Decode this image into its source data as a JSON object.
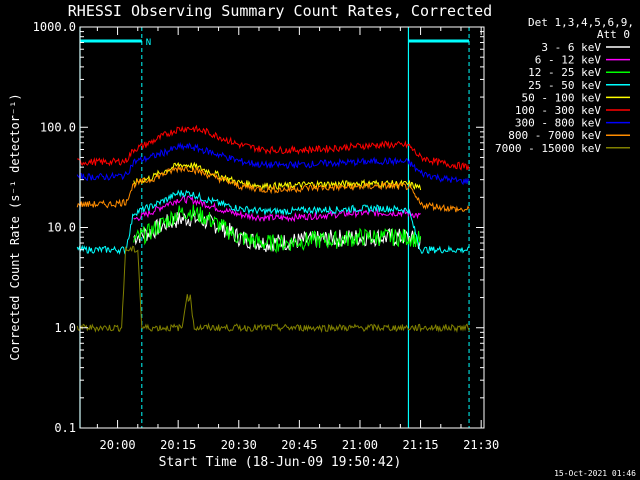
{
  "chart_data": {
    "type": "line",
    "title": "RHESSI Observing Summary Count Rates, Corrected",
    "xlabel": "Start Time (18-Jun-09 19:50:42)",
    "ylabel": "Corrected Count Rate (s⁻¹ detector⁻¹)",
    "y_scale": "log",
    "ylim": [
      0.1,
      1000
    ],
    "xlim": [
      "19:50:42",
      "21:30:42"
    ],
    "y_ticks": [
      "1000.0",
      "100.0",
      "10.0",
      "1.0",
      "0.1"
    ],
    "x_ticks": [
      "20:00",
      "20:15",
      "20:30",
      "20:45",
      "21:00",
      "21:15",
      "21:30"
    ],
    "legend_header": [
      "Det 1,3,4,5,6,9,",
      "Att 0"
    ],
    "legend_position": "top-right",
    "timestamp": "15-Oct-2021 01:46",
    "night_marker": "N",
    "night_intervals": [
      [
        "19:50:42",
        "20:06:00"
      ],
      [
        "21:12:00",
        "21:27:00"
      ]
    ],
    "series": [
      {
        "name": "3 - 6 keV",
        "color": "#ffffff",
        "x": [
          "20:04",
          "20:08",
          "20:12",
          "20:15",
          "20:18",
          "20:22",
          "20:26",
          "20:30",
          "20:36",
          "20:42",
          "20:48",
          "20:54",
          "21:00",
          "21:06",
          "21:12",
          "21:15"
        ],
        "values": [
          8,
          9,
          11,
          12,
          12.5,
          11.5,
          10,
          8,
          7,
          7.2,
          7.5,
          7.8,
          8,
          8,
          8,
          7
        ]
      },
      {
        "name": "6 - 12 keV",
        "color": "#ff00ff",
        "x": [
          "20:04",
          "20:08",
          "20:12",
          "20:15",
          "20:18",
          "20:22",
          "20:26",
          "20:30",
          "20:36",
          "20:42",
          "20:48",
          "20:54",
          "21:00",
          "21:06",
          "21:12",
          "21:15"
        ],
        "values": [
          12,
          14,
          17,
          19,
          19,
          17,
          15,
          13.5,
          12.5,
          12.5,
          13,
          13.5,
          14,
          14,
          14,
          13
        ]
      },
      {
        "name": "12 - 25 keV",
        "color": "#00ff00",
        "x": [
          "20:04",
          "20:08",
          "20:12",
          "20:15",
          "20:18",
          "20:22",
          "20:26",
          "20:30",
          "20:36",
          "20:42",
          "20:48",
          "20:54",
          "21:00",
          "21:06",
          "21:12",
          "21:15"
        ],
        "values": [
          7.5,
          9,
          11.5,
          14,
          14.5,
          12.5,
          10,
          8,
          7,
          7,
          7.5,
          7.5,
          8,
          8,
          8,
          7.5
        ]
      },
      {
        "name": "25 - 50 keV",
        "color": "#00ffff",
        "x": [
          "19:50",
          "19:54",
          "19:58",
          "20:02",
          "20:04",
          "20:08",
          "20:12",
          "20:15",
          "20:18",
          "20:22",
          "20:26",
          "20:30",
          "20:36",
          "20:42",
          "20:48",
          "20:54",
          "21:00",
          "21:06",
          "21:12",
          "21:15",
          "21:20",
          "21:25",
          "21:27"
        ],
        "values": [
          6,
          6,
          6,
          6,
          14,
          16,
          19,
          22,
          22,
          19,
          17,
          15.5,
          14.5,
          14.5,
          15,
          15,
          15.5,
          15.5,
          15,
          6,
          6,
          6,
          6
        ]
      },
      {
        "name": "50 - 100 keV",
        "color": "#ffff00",
        "x": [
          "20:04",
          "20:08",
          "20:12",
          "20:15",
          "20:18",
          "20:22",
          "20:26",
          "20:30",
          "20:36",
          "20:42",
          "20:48",
          "20:54",
          "21:00",
          "21:06",
          "21:12",
          "21:15"
        ],
        "values": [
          28,
          31,
          37,
          42,
          42,
          37,
          32,
          28,
          26,
          26,
          27,
          27,
          27.5,
          27.5,
          27,
          25
        ]
      },
      {
        "name": "100 - 300 keV",
        "color": "#ff0000",
        "x": [
          "19:50",
          "19:54",
          "19:58",
          "20:02",
          "20:04",
          "20:08",
          "20:12",
          "20:15",
          "20:18",
          "20:22",
          "20:26",
          "20:30",
          "20:36",
          "20:42",
          "20:48",
          "20:54",
          "21:00",
          "21:06",
          "21:12",
          "21:15",
          "21:20",
          "21:25",
          "21:27"
        ],
        "values": [
          45,
          45,
          45,
          46,
          60,
          70,
          85,
          96,
          98,
          90,
          78,
          67,
          60,
          59,
          60,
          62,
          65,
          67,
          66,
          50,
          44,
          41,
          40
        ]
      },
      {
        "name": "300 - 800 keV",
        "color": "#0000ff",
        "x": [
          "19:50",
          "19:54",
          "19:58",
          "20:02",
          "20:04",
          "20:08",
          "20:12",
          "20:15",
          "20:18",
          "20:22",
          "20:26",
          "20:30",
          "20:36",
          "20:42",
          "20:48",
          "20:54",
          "21:00",
          "21:06",
          "21:12",
          "21:15",
          "21:20",
          "21:25",
          "21:27"
        ],
        "values": [
          32,
          32,
          32,
          33,
          45,
          50,
          57,
          63,
          64,
          58,
          52,
          46,
          42,
          42,
          43,
          44,
          45,
          46,
          45,
          35,
          31,
          29,
          29
        ]
      },
      {
        "name": "800 - 7000 keV",
        "color": "#ff8c00",
        "x": [
          "19:50",
          "19:54",
          "19:58",
          "20:02",
          "20:04",
          "20:08",
          "20:12",
          "20:15",
          "20:18",
          "20:22",
          "20:26",
          "20:30",
          "20:36",
          "20:42",
          "20:48",
          "20:54",
          "21:00",
          "21:06",
          "21:12",
          "21:15",
          "21:20",
          "21:25",
          "21:27"
        ],
        "values": [
          17,
          17,
          17,
          18,
          27,
          30,
          35,
          39,
          39,
          34,
          30,
          26,
          24,
          24,
          25,
          25,
          25.5,
          26,
          25.5,
          17,
          16,
          15,
          15
        ]
      },
      {
        "name": "7000 - 15000 keV",
        "color": "#808000",
        "x": [
          "19:50",
          "19:54",
          "19:58",
          "20:01",
          "20:02",
          "20:05",
          "20:06",
          "20:09",
          "20:12",
          "20:16",
          "20:17",
          "20:18",
          "20:19",
          "20:22",
          "20:26",
          "20:32",
          "21:08",
          "21:12",
          "21:20",
          "21:27"
        ],
        "values": [
          1,
          1,
          1,
          1,
          6,
          6,
          1,
          1,
          1,
          1,
          2,
          2,
          1,
          1,
          1,
          1,
          1,
          1,
          1,
          1
        ]
      }
    ]
  }
}
